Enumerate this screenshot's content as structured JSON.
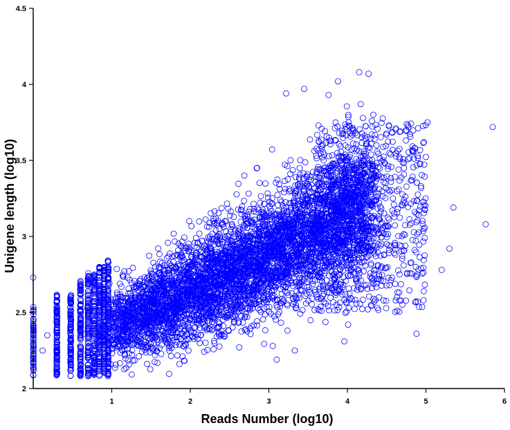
{
  "chart_data": {
    "type": "scatter",
    "title": "",
    "xlabel": "Reads Number (log10)",
    "ylabel": "Unigene length (log10)",
    "xlim": [
      0,
      6
    ],
    "ylim": [
      2,
      4.5
    ],
    "x_ticks": [
      1,
      2,
      3,
      4,
      5,
      6
    ],
    "y_ticks": [
      2,
      2.5,
      3,
      3.5,
      4,
      4.5
    ],
    "x_tick_labels": [
      "1",
      "2",
      "3",
      "4",
      "5",
      "6"
    ],
    "y_tick_labels": [
      "2",
      "2.5",
      "3",
      "3.5",
      "4",
      "4.5"
    ],
    "marker": "open-circle",
    "grid": false,
    "legend": "none",
    "series": [
      {
        "color": "#0000ff",
        "outliers": [
          {
            "x": 4.15,
            "y": 4.08
          },
          {
            "x": 4.27,
            "y": 4.07
          },
          {
            "x": 3.88,
            "y": 4.02
          },
          {
            "x": 3.45,
            "y": 3.97
          },
          {
            "x": 3.22,
            "y": 3.94
          },
          {
            "x": 3.76,
            "y": 3.93
          },
          {
            "x": 4.17,
            "y": 3.87
          },
          {
            "x": 4.33,
            "y": 3.8
          },
          {
            "x": 5.02,
            "y": 3.75
          },
          {
            "x": 5.85,
            "y": 3.72
          },
          {
            "x": 5.35,
            "y": 3.19
          },
          {
            "x": 5.76,
            "y": 3.08
          },
          {
            "x": 5.3,
            "y": 2.92
          },
          {
            "x": 5.2,
            "y": 2.78
          },
          {
            "x": 4.97,
            "y": 2.58
          },
          {
            "x": 4.88,
            "y": 2.36
          },
          {
            "x": 4.01,
            "y": 2.42
          },
          {
            "x": 3.96,
            "y": 2.31
          },
          {
            "x": 3.33,
            "y": 2.25
          },
          {
            "x": 3.1,
            "y": 2.19
          },
          {
            "x": 3.05,
            "y": 2.28
          },
          {
            "x": 0.0,
            "y": 2.73
          },
          {
            "x": 0.18,
            "y": 2.35
          },
          {
            "x": 0.12,
            "y": 2.25
          }
        ]
      }
    ]
  }
}
